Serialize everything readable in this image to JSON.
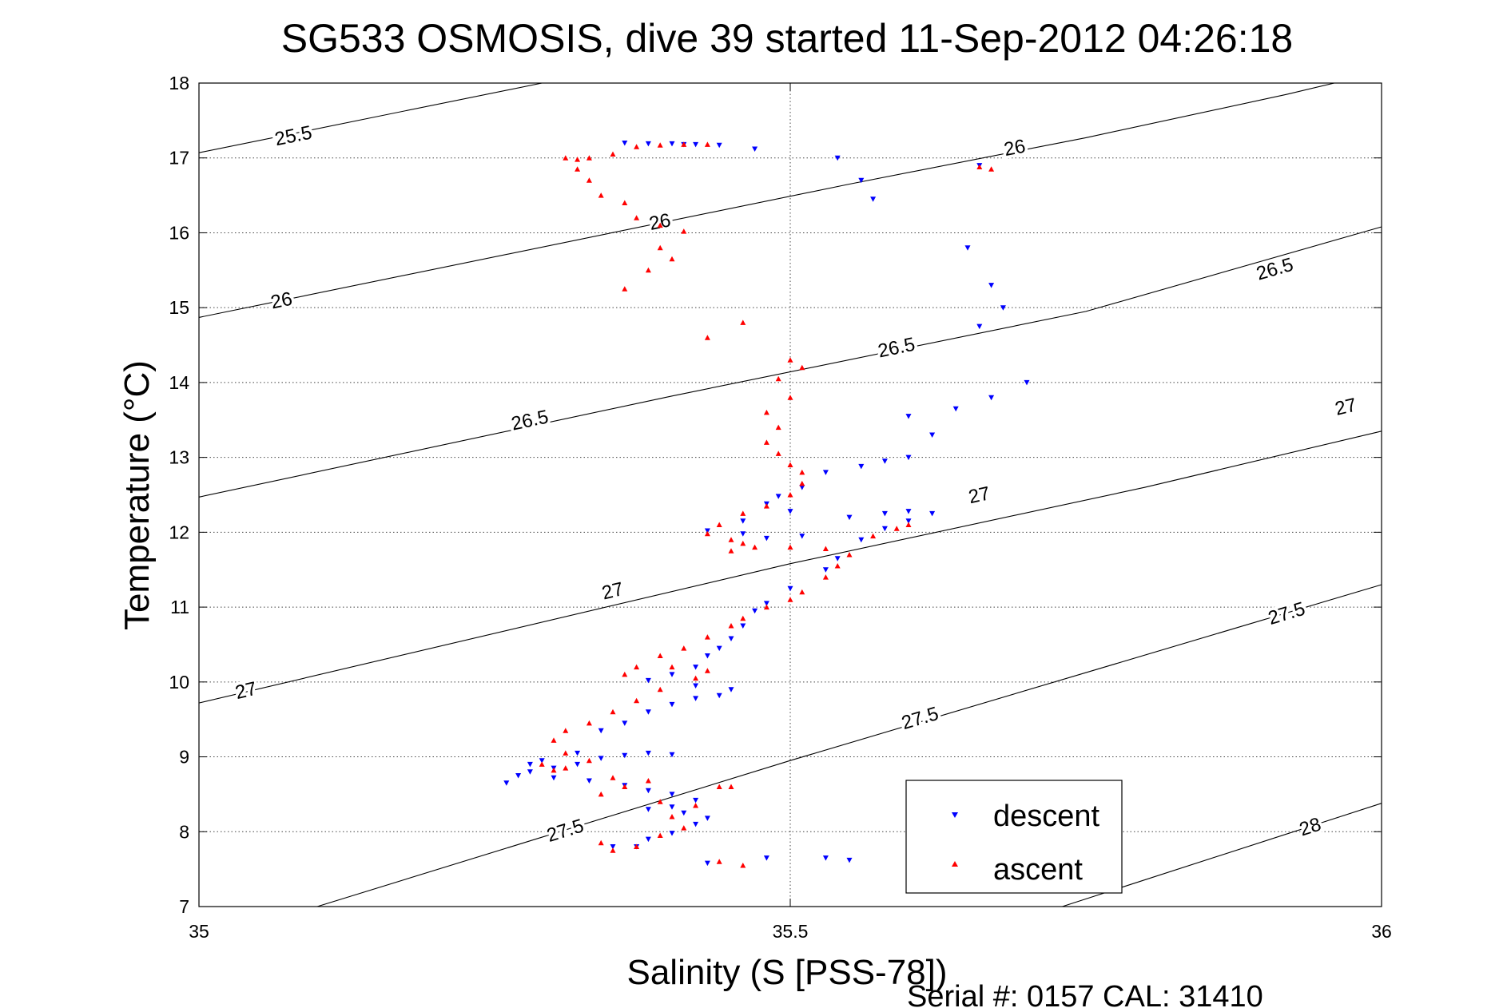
{
  "chart_data": {
    "type": "scatter",
    "title": "SG533 OSMOSIS, dive 39 started 11-Sep-2012 04:26:18",
    "xlabel": "Salinity (S [PSS-78])",
    "ylabel": "Temperature (°C)",
    "footer": "Serial #: 0157  CAL: 31410",
    "xlim": [
      35,
      36
    ],
    "ylim": [
      7,
      18
    ],
    "x_ticks": [
      35,
      35.5,
      36
    ],
    "x_tick_labels": [
      "35",
      "35.5",
      "36"
    ],
    "y_ticks": [
      7,
      8,
      9,
      10,
      11,
      12,
      13,
      14,
      15,
      16,
      17,
      18
    ],
    "y_tick_labels": [
      "7",
      "8",
      "9",
      "10",
      "11",
      "12",
      "13",
      "14",
      "15",
      "16",
      "17",
      "18"
    ],
    "grid": true,
    "legend_position": "bottom-right",
    "colors": {
      "descent": "#0000ff",
      "ascent": "#ff0000",
      "contour": "#000000",
      "grid": "#444444"
    },
    "density_contours": [
      {
        "level": "25.5",
        "points": [
          [
            35.0,
            17.07
          ],
          [
            35.29,
            18.0
          ]
        ],
        "labels": [
          {
            "x": 35.08,
            "y": 17.28,
            "text": "25.5"
          }
        ]
      },
      {
        "level": "26",
        "points": [
          [
            35.0,
            14.87
          ],
          [
            35.55,
            16.65
          ],
          [
            35.75,
            17.27
          ],
          [
            35.92,
            17.85
          ],
          [
            35.96,
            18.0
          ]
        ],
        "labels": [
          {
            "x": 35.07,
            "y": 15.08,
            "text": "26"
          },
          {
            "x": 35.39,
            "y": 16.13,
            "text": "26"
          },
          {
            "x": 35.69,
            "y": 17.12,
            "text": "26"
          }
        ]
      },
      {
        "level": "26.5",
        "points": [
          [
            35.0,
            12.47
          ],
          [
            35.4,
            13.82
          ],
          [
            35.75,
            14.95
          ],
          [
            36.0,
            16.08
          ]
        ],
        "labels": [
          {
            "x": 35.28,
            "y": 13.48,
            "text": "26.5"
          },
          {
            "x": 35.59,
            "y": 14.45,
            "text": "26.5"
          },
          {
            "x": 35.91,
            "y": 15.5,
            "text": "26.5"
          }
        ]
      },
      {
        "level": "27",
        "points": [
          [
            35.0,
            9.72
          ],
          [
            35.5,
            11.58
          ],
          [
            35.8,
            12.6
          ],
          [
            36.0,
            13.35
          ]
        ],
        "labels": [
          {
            "x": 35.04,
            "y": 9.87,
            "text": "27"
          },
          {
            "x": 35.35,
            "y": 11.2,
            "text": "27"
          },
          {
            "x": 35.66,
            "y": 12.48,
            "text": "27"
          },
          {
            "x": 35.97,
            "y": 13.66,
            "text": "27"
          }
        ]
      },
      {
        "level": "27.5",
        "points": [
          [
            35.1,
            7.0
          ],
          [
            35.5,
            8.95
          ],
          [
            36.0,
            11.3
          ]
        ],
        "labels": [
          {
            "x": 35.31,
            "y": 8.0,
            "text": "27.5"
          },
          {
            "x": 35.61,
            "y": 9.5,
            "text": "27.5"
          },
          {
            "x": 35.92,
            "y": 10.9,
            "text": "27.5"
          }
        ]
      },
      {
        "level": "28",
        "points": [
          [
            35.73,
            7.0
          ],
          [
            36.0,
            8.38
          ]
        ],
        "labels": [
          {
            "x": 35.94,
            "y": 8.05,
            "text": "28"
          }
        ]
      }
    ],
    "series": [
      {
        "name": "descent",
        "marker": "triangle-down",
        "points": [
          [
            35.36,
            17.2
          ],
          [
            35.38,
            17.19
          ],
          [
            35.4,
            17.19
          ],
          [
            35.41,
            17.18
          ],
          [
            35.42,
            17.18
          ],
          [
            35.44,
            17.17
          ],
          [
            35.47,
            17.12
          ],
          [
            35.54,
            17.0
          ],
          [
            35.56,
            16.7
          ],
          [
            35.57,
            16.45
          ],
          [
            35.66,
            16.9
          ],
          [
            35.65,
            15.8
          ],
          [
            35.67,
            15.3
          ],
          [
            35.68,
            15.0
          ],
          [
            35.66,
            14.75
          ],
          [
            35.7,
            14.0
          ],
          [
            35.67,
            13.8
          ],
          [
            35.64,
            13.65
          ],
          [
            35.6,
            13.55
          ],
          [
            35.62,
            13.3
          ],
          [
            35.6,
            13.0
          ],
          [
            35.58,
            12.95
          ],
          [
            35.56,
            12.88
          ],
          [
            35.53,
            12.8
          ],
          [
            35.51,
            12.6
          ],
          [
            35.49,
            12.48
          ],
          [
            35.48,
            12.38
          ],
          [
            35.5,
            12.28
          ],
          [
            35.46,
            12.15
          ],
          [
            35.43,
            12.02
          ],
          [
            35.46,
            11.98
          ],
          [
            35.48,
            11.92
          ],
          [
            35.51,
            11.95
          ],
          [
            35.55,
            12.2
          ],
          [
            35.58,
            12.25
          ],
          [
            35.6,
            12.28
          ],
          [
            35.62,
            12.25
          ],
          [
            35.6,
            12.15
          ],
          [
            35.58,
            12.05
          ],
          [
            35.56,
            11.9
          ],
          [
            35.54,
            11.65
          ],
          [
            35.53,
            11.5
          ],
          [
            35.5,
            11.25
          ],
          [
            35.48,
            11.05
          ],
          [
            35.47,
            10.95
          ],
          [
            35.46,
            10.75
          ],
          [
            35.45,
            10.58
          ],
          [
            35.44,
            10.45
          ],
          [
            35.43,
            10.35
          ],
          [
            35.42,
            10.2
          ],
          [
            35.4,
            10.1
          ],
          [
            35.38,
            10.02
          ],
          [
            35.42,
            9.95
          ],
          [
            35.45,
            9.9
          ],
          [
            35.44,
            9.82
          ],
          [
            35.42,
            9.78
          ],
          [
            35.4,
            9.7
          ],
          [
            35.38,
            9.6
          ],
          [
            35.36,
            9.45
          ],
          [
            35.34,
            9.35
          ],
          [
            35.38,
            9.05
          ],
          [
            35.4,
            9.03
          ],
          [
            35.36,
            9.02
          ],
          [
            35.34,
            8.98
          ],
          [
            35.32,
            8.9
          ],
          [
            35.3,
            8.85
          ],
          [
            35.28,
            8.8
          ],
          [
            35.3,
            8.72
          ],
          [
            35.33,
            8.68
          ],
          [
            35.36,
            8.62
          ],
          [
            35.38,
            8.55
          ],
          [
            35.4,
            8.5
          ],
          [
            35.42,
            8.42
          ],
          [
            35.4,
            8.33
          ],
          [
            35.38,
            8.3
          ],
          [
            35.41,
            8.25
          ],
          [
            35.43,
            8.18
          ],
          [
            35.42,
            8.1
          ],
          [
            35.4,
            7.98
          ],
          [
            35.38,
            7.9
          ],
          [
            35.37,
            7.8
          ],
          [
            35.35,
            7.8
          ],
          [
            35.26,
            8.65
          ],
          [
            35.27,
            8.75
          ],
          [
            35.28,
            8.9
          ],
          [
            35.29,
            8.95
          ],
          [
            35.32,
            9.05
          ],
          [
            35.53,
            7.65
          ],
          [
            35.55,
            7.62
          ],
          [
            35.48,
            7.65
          ],
          [
            35.43,
            7.58
          ]
        ]
      },
      {
        "name": "ascent",
        "marker": "triangle-up",
        "points": [
          [
            35.31,
            17.0
          ],
          [
            35.32,
            16.98
          ],
          [
            35.33,
            17.0
          ],
          [
            35.35,
            17.05
          ],
          [
            35.37,
            17.15
          ],
          [
            35.39,
            17.17
          ],
          [
            35.41,
            17.18
          ],
          [
            35.43,
            17.18
          ],
          [
            35.32,
            16.85
          ],
          [
            35.33,
            16.7
          ],
          [
            35.34,
            16.5
          ],
          [
            35.36,
            16.4
          ],
          [
            35.37,
            16.2
          ],
          [
            35.39,
            16.1
          ],
          [
            35.41,
            16.02
          ],
          [
            35.39,
            15.8
          ],
          [
            35.4,
            15.65
          ],
          [
            35.38,
            15.5
          ],
          [
            35.36,
            15.25
          ],
          [
            35.46,
            14.8
          ],
          [
            35.43,
            14.6
          ],
          [
            35.67,
            16.85
          ],
          [
            35.66,
            16.88
          ],
          [
            35.5,
            14.3
          ],
          [
            35.51,
            14.2
          ],
          [
            35.49,
            14.05
          ],
          [
            35.5,
            13.8
          ],
          [
            35.48,
            13.6
          ],
          [
            35.49,
            13.4
          ],
          [
            35.48,
            13.2
          ],
          [
            35.49,
            13.05
          ],
          [
            35.5,
            12.9
          ],
          [
            35.51,
            12.8
          ],
          [
            35.51,
            12.65
          ],
          [
            35.5,
            12.5
          ],
          [
            35.48,
            12.35
          ],
          [
            35.46,
            12.25
          ],
          [
            35.44,
            12.1
          ],
          [
            35.43,
            11.98
          ],
          [
            35.45,
            11.9
          ],
          [
            35.46,
            11.85
          ],
          [
            35.47,
            11.8
          ],
          [
            35.45,
            11.75
          ],
          [
            35.5,
            11.8
          ],
          [
            35.53,
            11.78
          ],
          [
            35.6,
            12.1
          ],
          [
            35.59,
            12.05
          ],
          [
            35.57,
            11.95
          ],
          [
            35.55,
            11.7
          ],
          [
            35.54,
            11.55
          ],
          [
            35.53,
            11.4
          ],
          [
            35.51,
            11.2
          ],
          [
            35.5,
            11.1
          ],
          [
            35.48,
            11.0
          ],
          [
            35.46,
            10.85
          ],
          [
            35.45,
            10.75
          ],
          [
            35.43,
            10.6
          ],
          [
            35.41,
            10.45
          ],
          [
            35.39,
            10.35
          ],
          [
            35.37,
            10.2
          ],
          [
            35.36,
            10.1
          ],
          [
            35.4,
            10.2
          ],
          [
            35.43,
            10.15
          ],
          [
            35.42,
            10.05
          ],
          [
            35.39,
            9.9
          ],
          [
            35.37,
            9.75
          ],
          [
            35.35,
            9.6
          ],
          [
            35.33,
            9.45
          ],
          [
            35.31,
            9.35
          ],
          [
            35.3,
            9.22
          ],
          [
            35.31,
            9.05
          ],
          [
            35.33,
            8.95
          ],
          [
            35.31,
            8.85
          ],
          [
            35.3,
            8.82
          ],
          [
            35.35,
            8.72
          ],
          [
            35.38,
            8.68
          ],
          [
            35.36,
            8.6
          ],
          [
            35.34,
            8.5
          ],
          [
            35.39,
            8.4
          ],
          [
            35.42,
            8.35
          ],
          [
            35.44,
            8.6
          ],
          [
            35.45,
            8.6
          ],
          [
            35.4,
            8.2
          ],
          [
            35.41,
            8.05
          ],
          [
            35.39,
            7.95
          ],
          [
            35.34,
            7.85
          ],
          [
            35.35,
            7.75
          ],
          [
            35.37,
            7.8
          ],
          [
            35.46,
            7.55
          ],
          [
            35.44,
            7.6
          ],
          [
            35.29,
            8.9
          ]
        ]
      }
    ]
  }
}
